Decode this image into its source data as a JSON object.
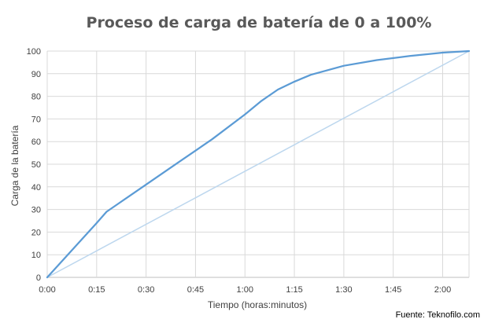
{
  "chart_data": {
    "type": "line",
    "title": "Proceso de carga de batería de 0 a 100%",
    "xlabel": "Tiempo (horas:minutos)",
    "ylabel": "Carga de la batería",
    "x_tick_labels": [
      "0:00",
      "0:15",
      "0:30",
      "0:45",
      "1:00",
      "1:15",
      "1:30",
      "1:45",
      "2:00"
    ],
    "y_ticks": [
      0,
      10,
      20,
      30,
      40,
      50,
      60,
      70,
      80,
      90,
      100
    ],
    "xlim_minutes": [
      0,
      128
    ],
    "ylim": [
      0,
      100
    ],
    "grid": true,
    "series": [
      {
        "color": "#5b9bd5",
        "x_minutes": [
          0,
          5,
          10,
          15,
          18,
          22,
          30,
          40,
          50,
          60,
          65,
          70,
          75,
          80,
          90,
          100,
          110,
          120,
          128
        ],
        "values": [
          0,
          8,
          16,
          24,
          29,
          33,
          41,
          51,
          61,
          72,
          78,
          83,
          86.5,
          89.5,
          93.5,
          96,
          97.8,
          99.3,
          100
        ]
      },
      {
        "color": "#bdd7ee",
        "x_minutes": [
          0,
          128
        ],
        "values": [
          0,
          100
        ]
      }
    ]
  },
  "source": "Fuente: Teknofilo.com"
}
